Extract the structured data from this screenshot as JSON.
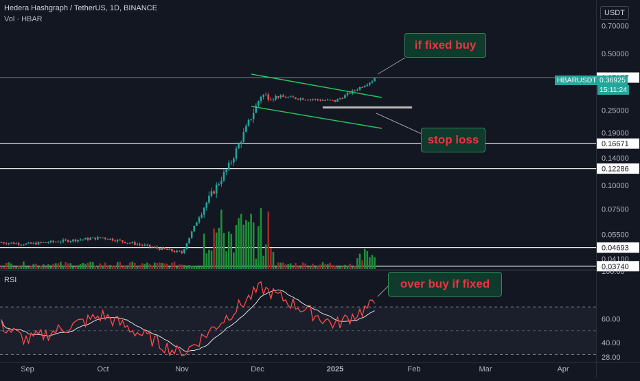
{
  "header": {
    "title": "Hedera Hashgraph / TetherUS, 1D, BINANCE",
    "volume_label": "Vol · HBAR"
  },
  "currency": "USDT",
  "rsi_label": "RSI",
  "colors": {
    "up": "#26a69a",
    "down": "#ef5350",
    "note_bg": "#0f3a2c",
    "note_border": "#2e8b57",
    "note_text": "#ef3340",
    "rsi": "#ff4a4a",
    "rsi_ma": "#e0e0e0"
  },
  "annotations": [
    {
      "text": "if fixed buy"
    },
    {
      "text": "stop loss"
    },
    {
      "text": "over buy if fixed"
    }
  ],
  "symbol_tag": {
    "symbol": "HBARUSDT",
    "price": "0.36925",
    "countdown": "15:11:24"
  },
  "chart_data": [
    {
      "type": "candlestick",
      "scale": "log",
      "x_labels": [
        "Sep",
        "Oct",
        "Nov",
        "Dec",
        "2025",
        "Feb",
        "Mar",
        "Apr"
      ],
      "y_ticks": [
        "0.70000",
        "0.50000",
        "0.25000",
        "0.19000",
        "0.14000",
        "0.10000",
        "0.07500",
        "0.05500",
        "0.04100"
      ],
      "ylim": [
        0.0361,
        0.92
      ],
      "price_levels": [
        "0.37257",
        "0.16671",
        "0.12286",
        "0.04693",
        "0.03740"
      ],
      "ohlc_key_points": [
        {
          "date": "Aug",
          "close": 0.05
        },
        {
          "date": "Sep",
          "close": 0.049
        },
        {
          "date": "Oct",
          "close": 0.053
        },
        {
          "date": "Nov",
          "close": 0.044
        },
        {
          "date": "Nov-mid",
          "close": 0.075
        },
        {
          "date": "Nov-end",
          "close": 0.13
        },
        {
          "date": "Dec",
          "close": 0.3
        },
        {
          "date": "2025",
          "close": 0.28
        },
        {
          "date": "last",
          "close": 0.36925
        }
      ]
    },
    {
      "type": "line",
      "name": "RSI",
      "y_ticks": [
        "100.00",
        "60.00",
        "40.00",
        "28.00"
      ],
      "ylim": [
        28,
        100
      ],
      "key_points": [
        {
          "date": "Aug",
          "value": 55
        },
        {
          "date": "Sep",
          "value": 42
        },
        {
          "date": "Oct",
          "value": 63
        },
        {
          "date": "Nov",
          "value": 30
        },
        {
          "date": "Dec",
          "value": 86
        },
        {
          "date": "2025",
          "value": 55
        },
        {
          "date": "last",
          "value": 73
        }
      ]
    }
  ]
}
